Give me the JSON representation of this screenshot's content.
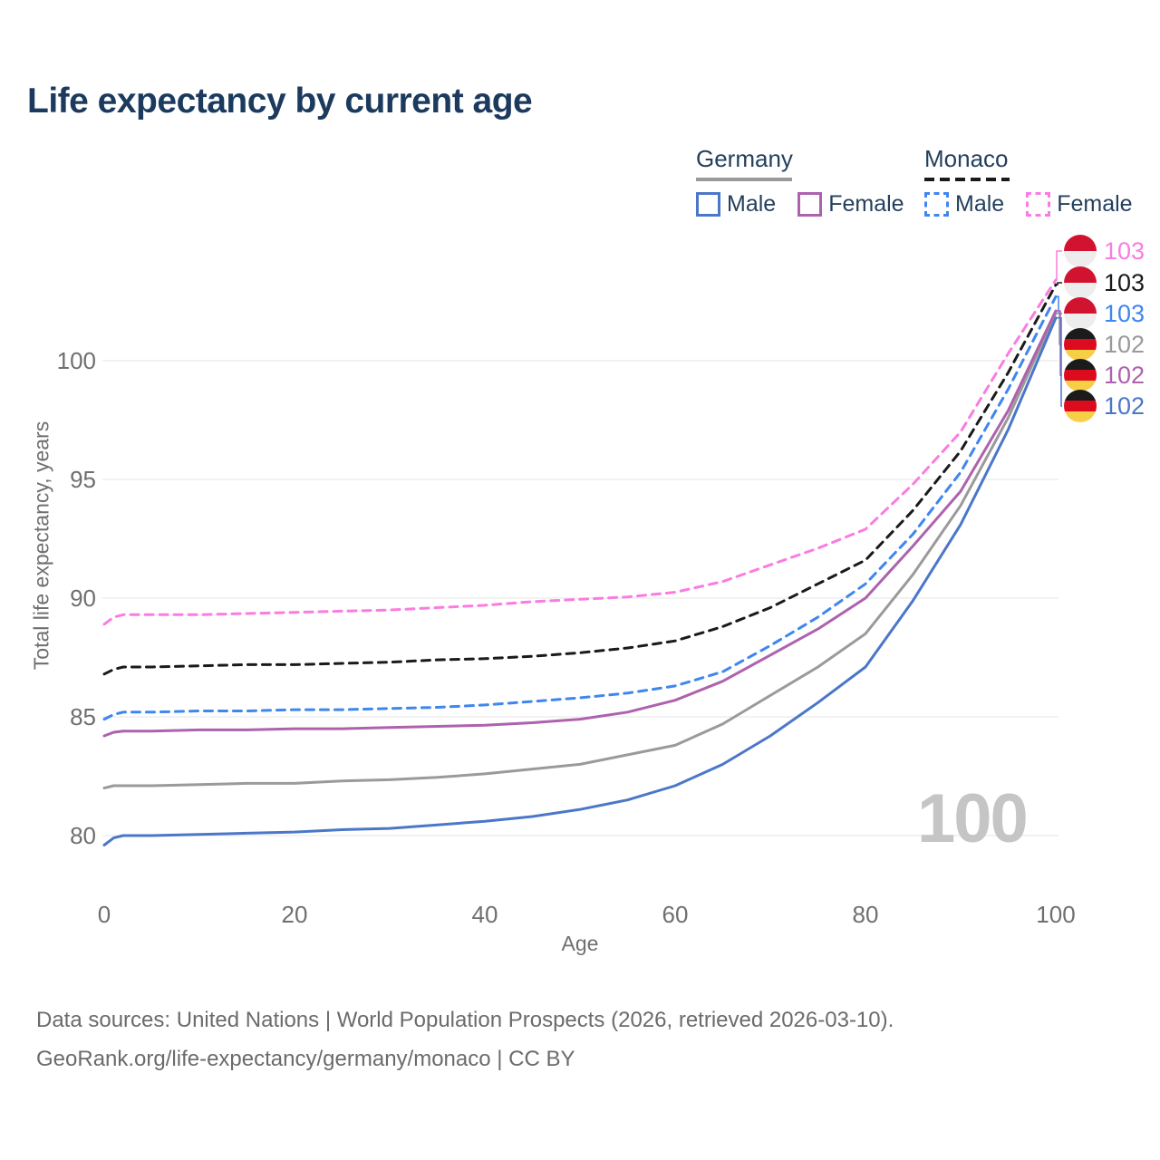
{
  "page": {
    "title": "Life expectancy by current age",
    "watermark_age": "100"
  },
  "legend": {
    "groups": [
      {
        "label": "Germany",
        "line_style": "solid",
        "line_color": "#9a9a9a",
        "items": [
          {
            "label": "Male",
            "color": "#4b77c9",
            "dashed": false
          },
          {
            "label": "Female",
            "color": "#ad62ad",
            "dashed": false
          }
        ]
      },
      {
        "label": "Monaco",
        "line_style": "dashed",
        "line_color": "#1a1a1a",
        "items": [
          {
            "label": "Male",
            "color": "#3e86f0",
            "dashed": true
          },
          {
            "label": "Female",
            "color": "#fb7ce1",
            "dashed": true
          }
        ]
      }
    ]
  },
  "chart_data": {
    "type": "line",
    "title": "Life expectancy by current age",
    "xlabel": "Age",
    "ylabel": "Total life expectancy, years",
    "xlim": [
      0,
      100
    ],
    "ylim": [
      79,
      105
    ],
    "xticks": [
      0,
      20,
      40,
      60,
      80,
      100
    ],
    "yticks": [
      80,
      85,
      90,
      95,
      100
    ],
    "grid": "horizontal-only",
    "legend_position": "top-right",
    "x": [
      0,
      1,
      2,
      5,
      10,
      15,
      20,
      25,
      30,
      35,
      40,
      45,
      50,
      55,
      60,
      65,
      70,
      75,
      80,
      85,
      90,
      95,
      100
    ],
    "series": [
      {
        "id": "germany-both",
        "name": "Germany (both sexes)",
        "country": "Germany",
        "sex": "both",
        "color": "#9a9a9a",
        "dashed": false,
        "end_label": "102",
        "values": [
          82.0,
          82.1,
          82.1,
          82.1,
          82.15,
          82.2,
          82.2,
          82.3,
          82.35,
          82.45,
          82.6,
          82.8,
          83.0,
          83.4,
          83.8,
          84.7,
          85.9,
          87.1,
          88.5,
          91.0,
          93.9,
          97.6,
          102.0
        ]
      },
      {
        "id": "germany-male",
        "name": "Germany Male",
        "country": "Germany",
        "sex": "male",
        "color": "#4b77c9",
        "dashed": false,
        "end_label": "102",
        "values": [
          79.6,
          79.9,
          80.0,
          80.0,
          80.05,
          80.1,
          80.15,
          80.25,
          80.3,
          80.45,
          80.6,
          80.8,
          81.1,
          81.5,
          82.1,
          83.0,
          84.2,
          85.6,
          87.1,
          89.9,
          93.1,
          97.1,
          101.8
        ]
      },
      {
        "id": "germany-female",
        "name": "Germany Female",
        "country": "Germany",
        "sex": "female",
        "color": "#ad62ad",
        "dashed": false,
        "end_label": "102",
        "values": [
          84.2,
          84.35,
          84.4,
          84.4,
          84.45,
          84.45,
          84.5,
          84.5,
          84.55,
          84.6,
          84.65,
          84.75,
          84.9,
          85.2,
          85.7,
          86.5,
          87.6,
          88.7,
          90.0,
          92.2,
          94.5,
          97.9,
          102.1
        ]
      },
      {
        "id": "monaco-both",
        "name": "Monaco (both sexes)",
        "country": "Monaco",
        "sex": "both",
        "color": "#1a1a1a",
        "dashed": true,
        "end_label": "103",
        "values": [
          86.8,
          87.0,
          87.1,
          87.1,
          87.15,
          87.2,
          87.2,
          87.25,
          87.3,
          87.4,
          87.45,
          87.55,
          87.7,
          87.9,
          88.2,
          88.8,
          89.6,
          90.6,
          91.6,
          93.7,
          96.2,
          99.5,
          103.2
        ]
      },
      {
        "id": "monaco-male",
        "name": "Monaco Male",
        "country": "Monaco",
        "sex": "male",
        "color": "#3e86f0",
        "dashed": true,
        "end_label": "103",
        "values": [
          84.9,
          85.1,
          85.2,
          85.2,
          85.25,
          85.25,
          85.3,
          85.3,
          85.35,
          85.4,
          85.5,
          85.65,
          85.8,
          86.0,
          86.3,
          86.9,
          88.0,
          89.2,
          90.6,
          92.7,
          95.3,
          98.8,
          102.7
        ]
      },
      {
        "id": "monaco-female",
        "name": "Monaco Female",
        "country": "Monaco",
        "sex": "female",
        "color": "#fb7ce1",
        "dashed": true,
        "end_label": "103",
        "values": [
          88.9,
          89.2,
          89.3,
          89.3,
          89.3,
          89.35,
          89.4,
          89.45,
          89.5,
          89.6,
          89.7,
          89.85,
          89.95,
          90.05,
          90.25,
          90.7,
          91.4,
          92.1,
          92.9,
          94.8,
          97.0,
          100.3,
          103.4
        ]
      }
    ]
  },
  "callouts": [
    {
      "series": "monaco-female",
      "flag": "monaco",
      "value": "103",
      "color": "#fb7ce1"
    },
    {
      "series": "monaco-both",
      "flag": "monaco",
      "value": "103",
      "color": "#1a1a1a"
    },
    {
      "series": "monaco-male",
      "flag": "monaco",
      "value": "103",
      "color": "#3e86f0"
    },
    {
      "series": "germany-both",
      "flag": "germany",
      "value": "102",
      "color": "#9a9a9a"
    },
    {
      "series": "germany-female",
      "flag": "germany",
      "value": "102",
      "color": "#ad62ad"
    },
    {
      "series": "germany-male",
      "flag": "germany",
      "value": "102",
      "color": "#4b77c9"
    }
  ],
  "footer": {
    "line1": "Data sources: United Nations | World Population Prospects (2026, retrieved 2026-03-10).",
    "line2": "GeoRank.org/life-expectancy/germany/monaco | CC BY"
  },
  "colors": {
    "title_text": "#1c3a5e",
    "axis_text": "#6f6f6f",
    "grid": "#e9e9e9",
    "watermark": "#c5c5c5",
    "footer_text": "#6b6b6b",
    "monaco_flag": [
      "#d2132f",
      "#ededed"
    ],
    "germany_flag": [
      "#1b1b1b",
      "#dd0b1e",
      "#f7cf46"
    ]
  }
}
